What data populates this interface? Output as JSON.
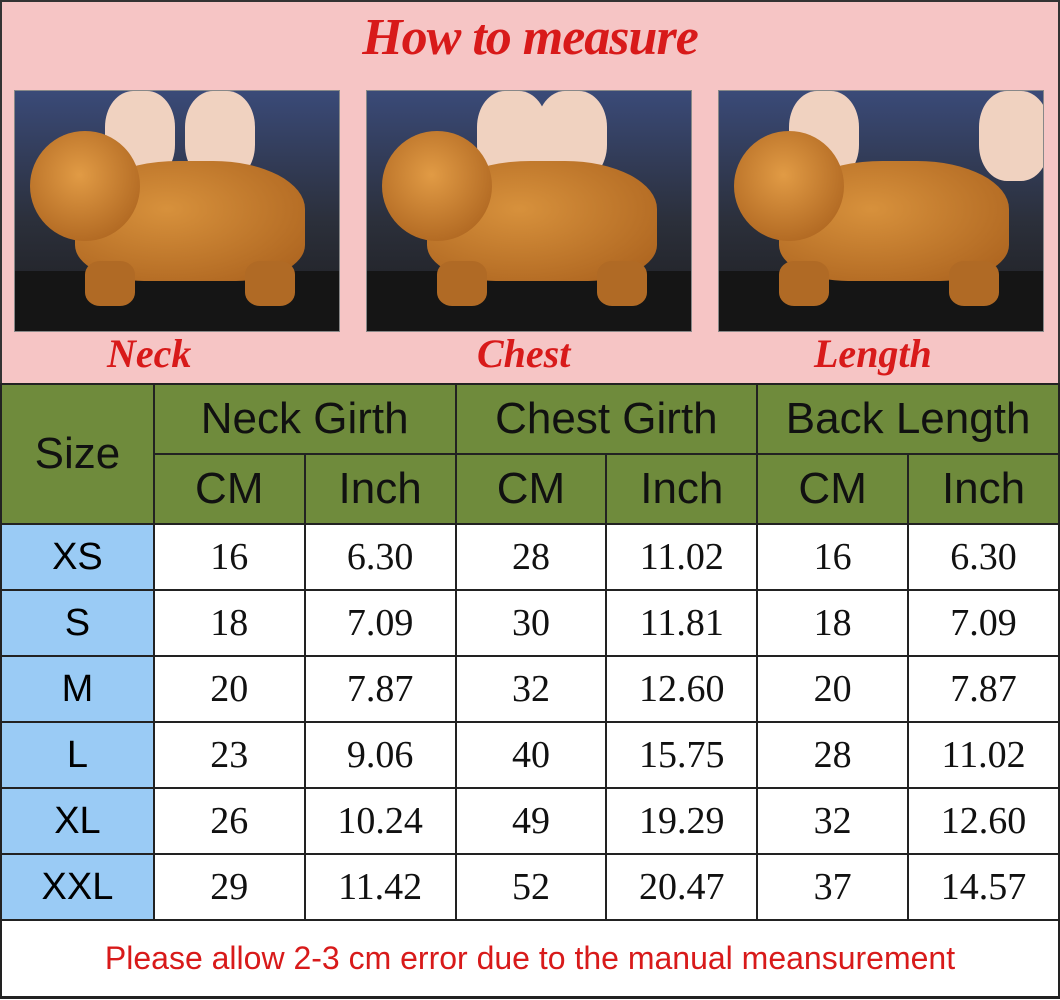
{
  "header": {
    "title": "How to measure",
    "photos": [
      {
        "label": "Neck"
      },
      {
        "label": "Chest"
      },
      {
        "label": "Length"
      }
    ]
  },
  "table": {
    "size_header": "Size",
    "groups": [
      "Neck Girth",
      "Chest Girth",
      "Back Length"
    ],
    "units": [
      "CM",
      "Inch",
      "CM",
      "Inch",
      "CM",
      "Inch"
    ],
    "rows": [
      {
        "size": "XS",
        "values": [
          "16",
          "6.30",
          "28",
          "11.02",
          "16",
          "6.30"
        ]
      },
      {
        "size": "S",
        "values": [
          "18",
          "7.09",
          "30",
          "11.81",
          "18",
          "7.09"
        ]
      },
      {
        "size": "M",
        "values": [
          "20",
          "7.87",
          "32",
          "12.60",
          "20",
          "7.87"
        ]
      },
      {
        "size": "L",
        "values": [
          "23",
          "9.06",
          "40",
          "15.75",
          "28",
          "11.02"
        ]
      },
      {
        "size": "XL",
        "values": [
          "26",
          "10.24",
          "49",
          "19.29",
          "32",
          "12.60"
        ]
      },
      {
        "size": "XXL",
        "values": [
          "29",
          "11.42",
          "52",
          "20.47",
          "37",
          "14.57"
        ]
      }
    ],
    "note": "Please allow 2-3 cm error due to the manual meansurement"
  },
  "colors": {
    "header_bg": "#f6c5c5",
    "accent_red": "#d81a1a",
    "green_header": "#6f8b3c",
    "size_blue": "#9acbf5"
  }
}
